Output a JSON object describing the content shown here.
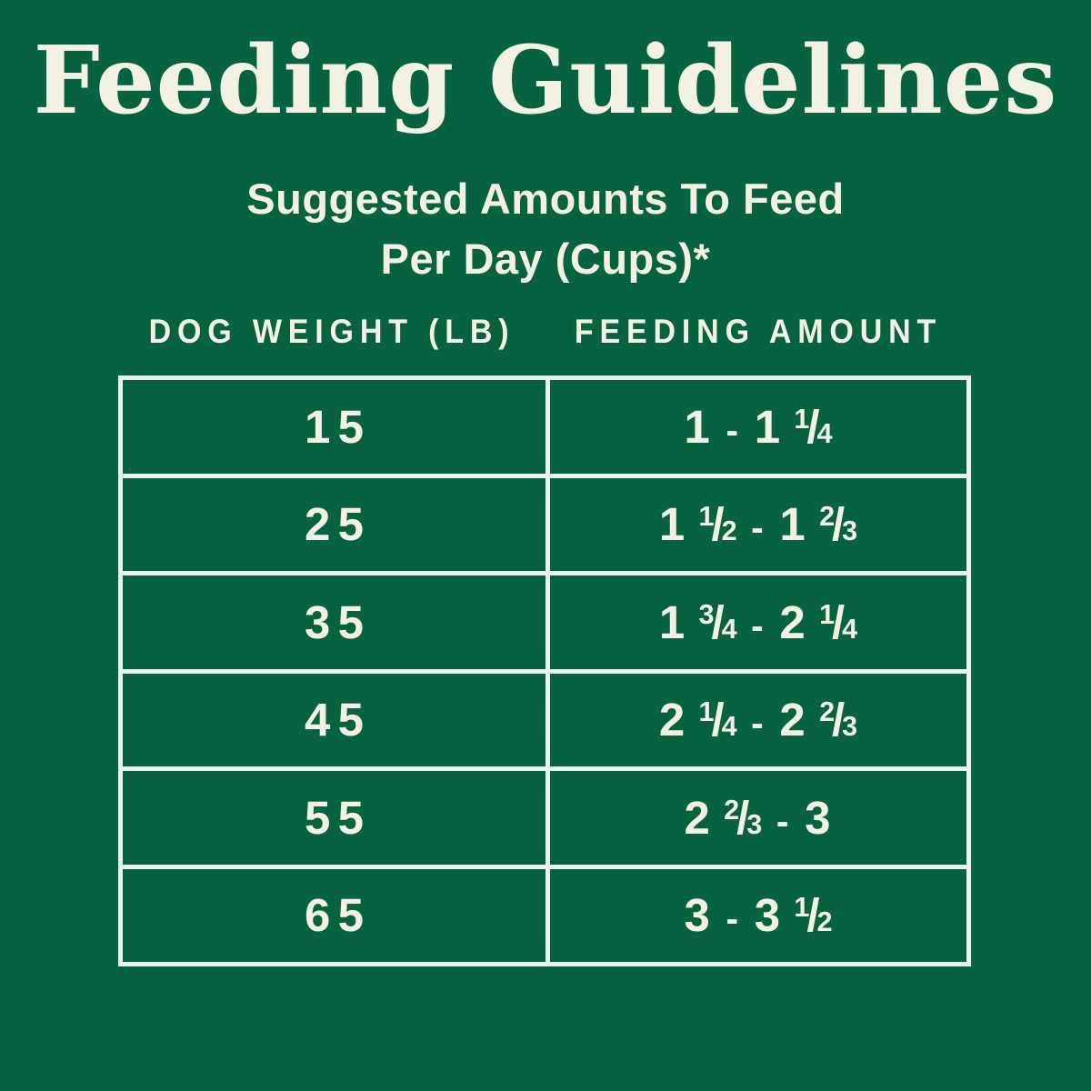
{
  "page": {
    "background_color": "#076240",
    "text_color": "#F2F1E3",
    "border_color": "#E9F2E6"
  },
  "title": "Feeding Guidelines",
  "subtitle_lines": [
    "Suggested Amounts To Feed",
    "Per Day (Cups)*"
  ],
  "table": {
    "columns": [
      "DOG WEIGHT (LB)",
      "FEEDING AMOUNT"
    ],
    "rows": [
      {
        "weight": "15",
        "amount": "1 - 1 1/4"
      },
      {
        "weight": "25",
        "amount": "1 1/2 - 1 2/3"
      },
      {
        "weight": "35",
        "amount": "1 3/4 - 2 1/4"
      },
      {
        "weight": "45",
        "amount": "2 1/4 - 2 2/3"
      },
      {
        "weight": "55",
        "amount": "2 2/3 - 3"
      },
      {
        "weight": "65",
        "amount": "3 - 3 1/2"
      }
    ]
  },
  "chart_data": {
    "type": "table",
    "title": "Feeding Guidelines",
    "subtitle": "Suggested Amounts To Feed Per Day (Cups)*",
    "columns": [
      "Dog Weight (lb)",
      "Feeding Amount (cups per day)"
    ],
    "rows": [
      [
        15,
        "1 - 1 1/4"
      ],
      [
        25,
        "1 1/2 - 1 2/3"
      ],
      [
        35,
        "1 3/4 - 2 1/4"
      ],
      [
        45,
        "2 1/4 - 2 2/3"
      ],
      [
        55,
        "2 2/3 - 3"
      ],
      [
        65,
        "3 - 3 1/2"
      ]
    ]
  }
}
